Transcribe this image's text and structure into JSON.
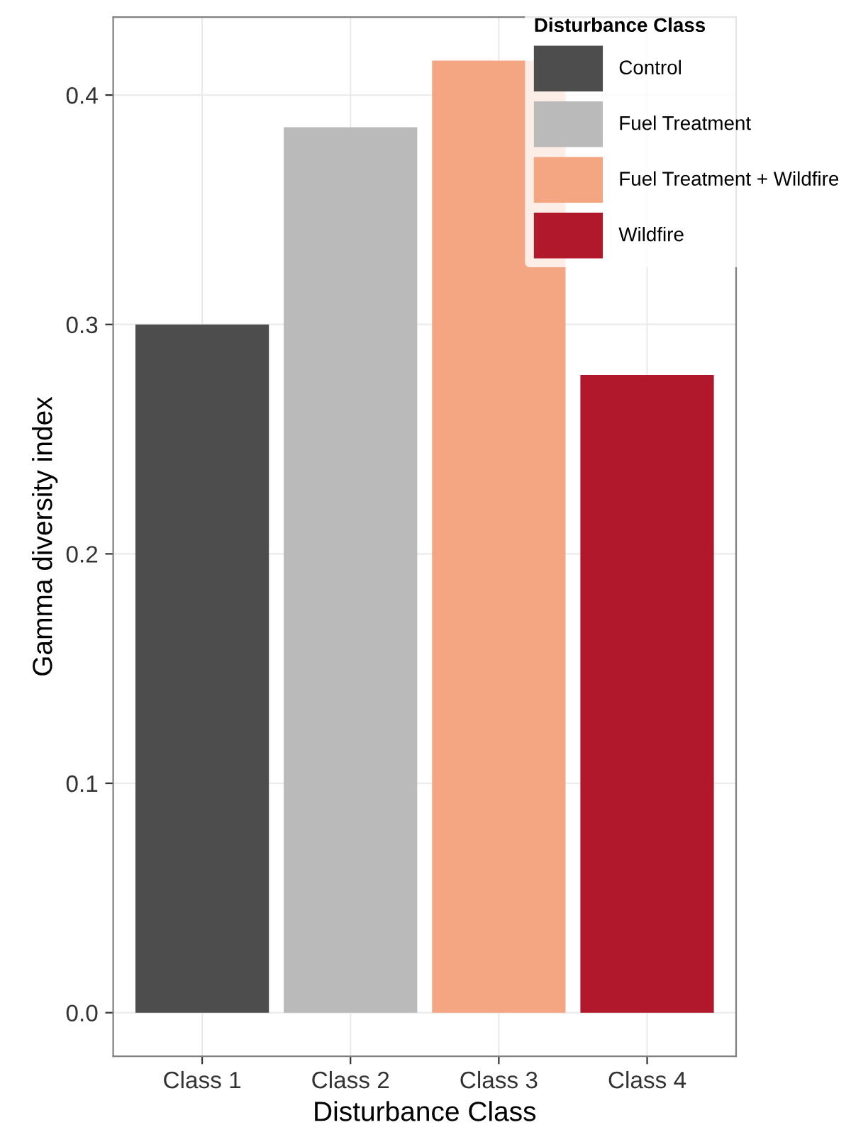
{
  "chart_data": {
    "type": "bar",
    "xlabel": "Disturbance Class",
    "ylabel": "Gamma diversity index",
    "categories": [
      "Class 1",
      "Class 2",
      "Class 3",
      "Class 4"
    ],
    "series": [
      {
        "name": "Control",
        "color": "#4d4d4d",
        "values": [
          0.3,
          null,
          null,
          null
        ]
      },
      {
        "name": "Fuel Treatment",
        "color": "#bababa",
        "values": [
          null,
          0.386,
          null,
          null
        ]
      },
      {
        "name": "Fuel Treatment + Wildfire",
        "color": "#f4a582",
        "values": [
          null,
          null,
          0.415,
          null
        ]
      },
      {
        "name": "Wildfire",
        "color": "#b2182b",
        "values": [
          null,
          null,
          null,
          0.278
        ]
      }
    ],
    "legend_title": "Disturbance Class",
    "ylim": [
      -0.019,
      0.434
    ],
    "yticks": [
      {
        "value": 0,
        "label": "0.0"
      },
      0.1,
      0.2,
      0.3,
      0.4
    ],
    "grid": true,
    "legend": "top right"
  }
}
